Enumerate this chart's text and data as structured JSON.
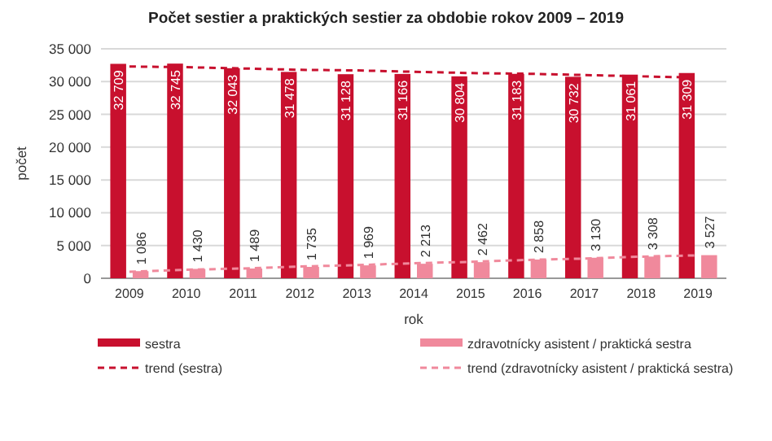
{
  "chart_data": {
    "type": "bar",
    "title": "Počet sestier  a praktických  sestier za obdobie rokov 2009 – 2019",
    "xlabel": "rok",
    "ylabel": "počet",
    "categories": [
      "2009",
      "2010",
      "2011",
      "2012",
      "2013",
      "2014",
      "2015",
      "2016",
      "2017",
      "2018",
      "2019"
    ],
    "series": [
      {
        "name": "sestra",
        "color": "#c8102e",
        "values": [
          32709,
          32745,
          32043,
          31478,
          31128,
          31166,
          30804,
          31183,
          30732,
          31061,
          31309
        ],
        "value_labels": [
          "32 709",
          "32 745",
          "32 043",
          "31 478",
          "31 128",
          "31 166",
          "30 804",
          "31 183",
          "30 732",
          "31 061",
          "31 309"
        ]
      },
      {
        "name": "zdravotnícky asistent / praktická sestra",
        "color": "#f0899c",
        "values": [
          1086,
          1430,
          1489,
          1735,
          1969,
          2213,
          2462,
          2858,
          3130,
          3308,
          3527
        ],
        "value_labels": [
          "1 086",
          "1 430",
          "1 489",
          "1 735",
          "1 969",
          "2 213",
          "2 462",
          "2 858",
          "3 130",
          "3 308",
          "3 527"
        ]
      },
      {
        "name": "trend (sestra)",
        "type": "line",
        "line_style": "dashed",
        "color": "#c8102e",
        "values": [
          32300,
          32200,
          32000,
          31800,
          31700,
          31500,
          31300,
          31200,
          31000,
          30800,
          30600
        ]
      },
      {
        "name": "trend (zdravotnícky asistent / praktická sestra)",
        "type": "line",
        "line_style": "dashed",
        "color": "#f0899c",
        "values": [
          1000,
          1300,
          1500,
          1800,
          2000,
          2300,
          2500,
          2800,
          3000,
          3300,
          3500
        ]
      }
    ],
    "ylim": [
      0,
      35000
    ],
    "yticks": [
      {
        "value": 0,
        "label": "0"
      },
      {
        "value": 5000,
        "label": "5 000"
      },
      {
        "value": 10000,
        "label": "10 000"
      },
      {
        "value": 15000,
        "label": "15 000"
      },
      {
        "value": 20000,
        "label": "20 000"
      },
      {
        "value": 25000,
        "label": "25 000"
      },
      {
        "value": 30000,
        "label": "30 000"
      },
      {
        "value": 35000,
        "label": "35 000"
      }
    ],
    "grid": "y",
    "legend": "bottom"
  }
}
